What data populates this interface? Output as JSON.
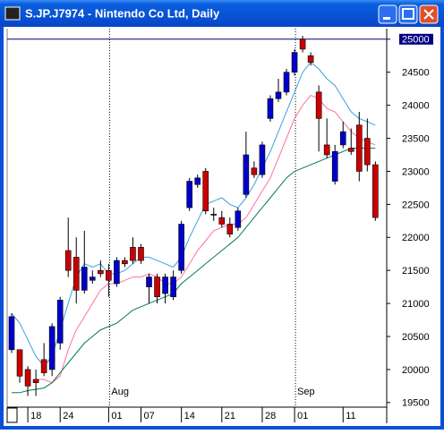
{
  "chart_data": {
    "type": "candlestick",
    "title": "S.JP.J7974 - Nintendo Co Ltd, Daily",
    "categories": [
      null,
      null,
      null,
      "18",
      null,
      null,
      null,
      "24",
      null,
      null,
      null,
      null,
      null,
      "01",
      null,
      null,
      null,
      "07",
      null,
      null,
      null,
      null,
      "14",
      null,
      null,
      null,
      null,
      "21",
      null,
      null,
      null,
      null,
      "28",
      null,
      null,
      null,
      "01",
      null,
      null,
      null,
      null,
      null,
      "11",
      null,
      null,
      null
    ],
    "months": [
      null,
      null,
      null,
      null,
      null,
      null,
      null,
      null,
      null,
      null,
      null,
      null,
      null,
      "Aug",
      null,
      null,
      null,
      null,
      null,
      null,
      null,
      null,
      null,
      null,
      null,
      null,
      null,
      null,
      null,
      null,
      null,
      null,
      null,
      null,
      null,
      null,
      "Sep",
      null,
      null,
      null,
      null,
      null,
      null,
      null,
      null,
      null
    ],
    "open": [
      20300,
      20300,
      20000,
      19850,
      20150,
      20000,
      20400,
      21800,
      21700,
      21200,
      21350,
      21500,
      21500,
      21300,
      21650,
      21850,
      21850,
      21250,
      21400,
      21150,
      21100,
      21500,
      22450,
      22800,
      23000,
      22350,
      22300,
      22200,
      22150,
      22650,
      23050,
      22950,
      23800,
      24100,
      24200,
      24500,
      25000,
      24750,
      24200,
      23400,
      22850,
      23400,
      23350,
      23700,
      23500,
      23100
    ],
    "high": [
      20850,
      20300,
      20050,
      20000,
      20400,
      20700,
      21100,
      22300,
      22000,
      22100,
      21500,
      21650,
      21600,
      21700,
      21700,
      22000,
      21900,
      21450,
      21450,
      21450,
      21500,
      22250,
      22900,
      22950,
      23050,
      22450,
      22400,
      22300,
      22450,
      23600,
      23150,
      23450,
      24150,
      24400,
      24550,
      24850,
      25050,
      24800,
      24300,
      23800,
      23400,
      23750,
      23650,
      23900,
      23800,
      23150
    ],
    "low": [
      20250,
      19800,
      19600,
      19600,
      19900,
      19900,
      20300,
      21400,
      21000,
      21150,
      21300,
      21400,
      21100,
      21250,
      21550,
      21600,
      21600,
      21000,
      21000,
      21000,
      21050,
      21450,
      22400,
      22750,
      22350,
      22250,
      22150,
      22000,
      22100,
      22600,
      22900,
      22900,
      23750,
      24050,
      24150,
      24450,
      24800,
      24600,
      23300,
      23200,
      22800,
      23350,
      23250,
      22850,
      23000,
      22250
    ],
    "close": [
      20800,
      19900,
      19750,
      19800,
      19950,
      20650,
      21050,
      21500,
      21200,
      21550,
      21400,
      21450,
      21350,
      21650,
      21600,
      21650,
      21650,
      21400,
      21100,
      21400,
      21400,
      22200,
      22850,
      22900,
      22400,
      22350,
      22200,
      22050,
      22400,
      23250,
      22950,
      23400,
      24100,
      24200,
      24500,
      24800,
      24850,
      24650,
      23800,
      23250,
      23300,
      23600,
      23300,
      23000,
      23100,
      22300
    ],
    "up_color": "#0000cc",
    "down_color": "#cc0000",
    "series": [
      {
        "color": "#3aa0e0",
        "values": [
          20850,
          20700,
          20450,
          20200,
          20050,
          20200,
          20600,
          21000,
          21400,
          21600,
          21550,
          21600,
          21450,
          21450,
          21500,
          21600,
          21700,
          21700,
          21650,
          21600,
          21550,
          21700,
          22000,
          22250,
          22500,
          22550,
          22600,
          22500,
          22450,
          22600,
          22800,
          23050,
          23300,
          23600,
          23900,
          24200,
          24500,
          24650,
          24550,
          24400,
          24300,
          24100,
          23900,
          23800,
          23750,
          23700
        ]
      },
      {
        "color": "#ff6fa0",
        "values": [
          null,
          null,
          null,
          19850,
          19850,
          19800,
          19900,
          20300,
          20600,
          20800,
          21000,
          21200,
          21300,
          21300,
          21350,
          21400,
          21400,
          21450,
          21400,
          21300,
          21300,
          21400,
          21600,
          21800,
          21950,
          22100,
          22150,
          22200,
          22200,
          22300,
          22500,
          22700,
          22900,
          23200,
          23500,
          23800,
          24000,
          24150,
          24100,
          23950,
          23900,
          23750,
          23600,
          23500,
          23450,
          23400
        ]
      },
      {
        "color": "#007a5a",
        "values": [
          19650,
          19650,
          19680,
          19700,
          19720,
          19800,
          19950,
          20100,
          20250,
          20400,
          20500,
          20600,
          20650,
          20700,
          20800,
          20900,
          20950,
          21000,
          21050,
          21100,
          21150,
          21300,
          21400,
          21500,
          21600,
          21700,
          21800,
          21900,
          22000,
          22150,
          22300,
          22450,
          22600,
          22750,
          22900,
          23000,
          23050,
          23100,
          23150,
          23200,
          23250,
          23300,
          23350,
          23350,
          23350,
          23350
        ]
      }
    ],
    "ylim": [
      19430,
      25160
    ],
    "yticks": [
      19500,
      20000,
      20500,
      21000,
      21500,
      22000,
      22500,
      23000,
      23500,
      24000,
      24500,
      25000
    ],
    "highlight_tick": 25000
  }
}
